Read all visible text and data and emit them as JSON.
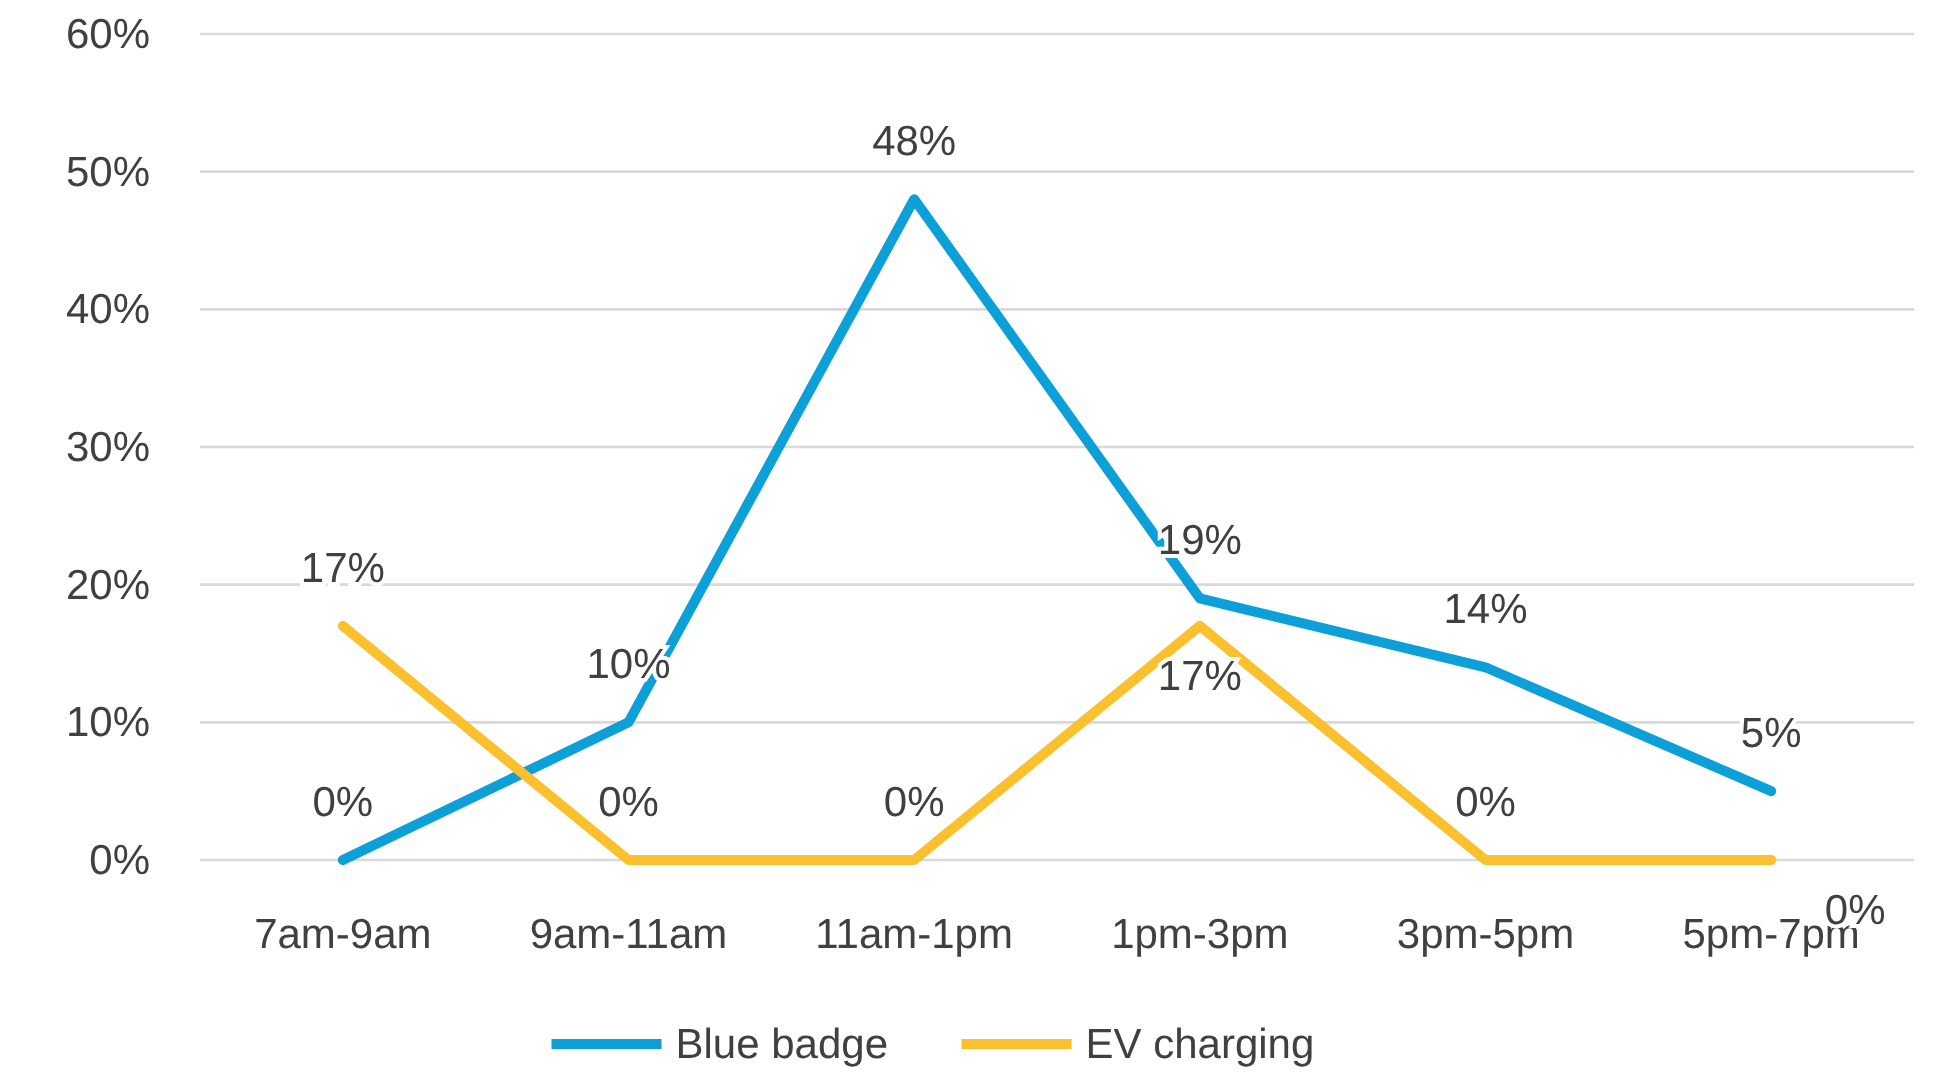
{
  "chart_data": {
    "type": "line",
    "categories": [
      "7am-9am",
      "9am-11am",
      "11am-1pm",
      "1pm-3pm",
      "3pm-5pm",
      "5pm-7pm"
    ],
    "series": [
      {
        "name": "Blue badge",
        "color": "#0c9fd8",
        "values": [
          0,
          10,
          48,
          19,
          14,
          5
        ],
        "value_labels": [
          "0%",
          "10%",
          "48%",
          "19%",
          "14%",
          "5%"
        ]
      },
      {
        "name": "EV charging",
        "color": "#fbc02d",
        "values": [
          17,
          0,
          0,
          17,
          0,
          0
        ],
        "value_labels": [
          "17%",
          "0%",
          "0%",
          "17%",
          "0%",
          "0%"
        ]
      }
    ],
    "ylim": [
      0,
      60
    ],
    "yticks": [
      {
        "value": 0,
        "label": "0%"
      },
      {
        "value": 10,
        "label": "10%"
      },
      {
        "value": 20,
        "label": "20%"
      },
      {
        "value": 30,
        "label": "30%"
      },
      {
        "value": 40,
        "label": "40%"
      },
      {
        "value": 50,
        "label": "50%"
      },
      {
        "value": 60,
        "label": "60%"
      }
    ],
    "grid": "y",
    "legend": "bottom",
    "marker": "none",
    "line_style": "solid"
  }
}
